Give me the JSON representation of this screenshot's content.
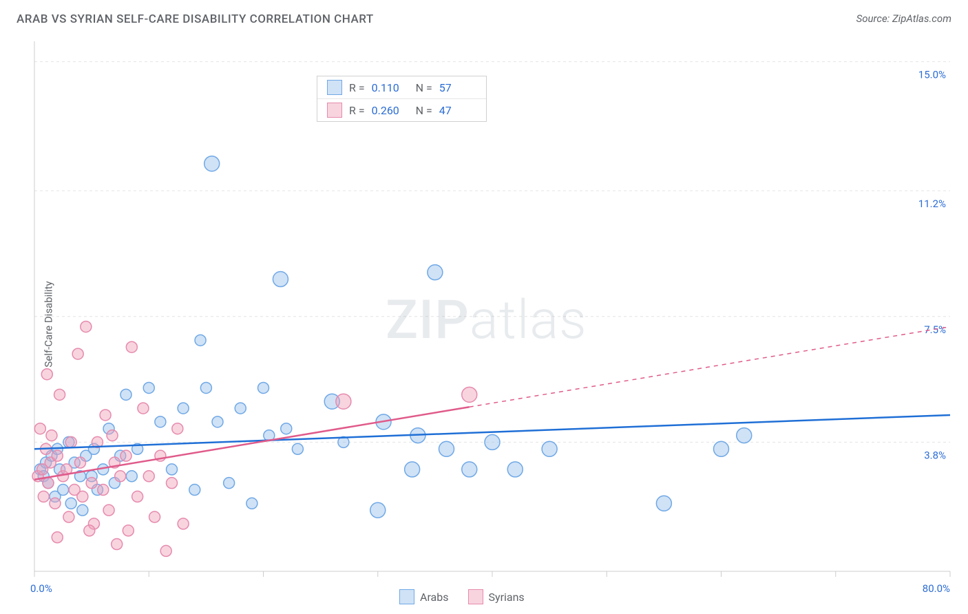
{
  "title": "ARAB VS SYRIAN SELF-CARE DISABILITY CORRELATION CHART",
  "source": "Source: ZipAtlas.com",
  "ylabel": "Self-Care Disability",
  "watermark": {
    "zip": "ZIP",
    "atlas": "atlas"
  },
  "chart": {
    "type": "scatter",
    "xlim": [
      0,
      80
    ],
    "ylim": [
      0,
      15.6
    ],
    "x_start_label": "0.0%",
    "x_end_label": "80.0%",
    "y_grid_values": [
      3.8,
      7.5,
      11.2,
      15.0
    ],
    "y_grid_labels": [
      "3.8%",
      "7.5%",
      "11.2%",
      "15.0%"
    ],
    "x_ticks": [
      0,
      10,
      20,
      30,
      40,
      50,
      60,
      70,
      80
    ],
    "grid_color": "#e4e4e4",
    "grid_dash": "4,4",
    "axis_color": "#cccccc",
    "background_color": "#ffffff",
    "text_color": "#5f6368",
    "link_color": "#2b6cd4",
    "marker_radius": 8,
    "marker_big_radius": 11,
    "marker_stroke_width": 1.5,
    "trend_width": 2.5,
    "series": [
      {
        "name": "Arabs",
        "fill": "rgba(150,190,235,0.45)",
        "stroke": "#6fa8e6",
        "trend_color": "#1f6fd6",
        "trend": {
          "x1": 0,
          "y1": 3.6,
          "x2": 80,
          "y2": 4.6,
          "solid_to_x": 80
        },
        "corr": {
          "R": "0.110",
          "N": "57"
        },
        "points": [
          {
            "x": 0.5,
            "y": 3.0
          },
          {
            "x": 0.8,
            "y": 2.8
          },
          {
            "x": 1.0,
            "y": 3.2
          },
          {
            "x": 1.2,
            "y": 2.6
          },
          {
            "x": 1.5,
            "y": 3.4
          },
          {
            "x": 1.8,
            "y": 2.2
          },
          {
            "x": 2.0,
            "y": 3.6
          },
          {
            "x": 2.2,
            "y": 3.0
          },
          {
            "x": 2.5,
            "y": 2.4
          },
          {
            "x": 3.0,
            "y": 3.8
          },
          {
            "x": 3.2,
            "y": 2.0
          },
          {
            "x": 3.5,
            "y": 3.2
          },
          {
            "x": 4.0,
            "y": 2.8
          },
          {
            "x": 4.2,
            "y": 1.8
          },
          {
            "x": 4.5,
            "y": 3.4
          },
          {
            "x": 5.0,
            "y": 2.8
          },
          {
            "x": 5.2,
            "y": 3.6
          },
          {
            "x": 5.5,
            "y": 2.4
          },
          {
            "x": 6.0,
            "y": 3.0
          },
          {
            "x": 6.5,
            "y": 4.2
          },
          {
            "x": 7.0,
            "y": 2.6
          },
          {
            "x": 7.5,
            "y": 3.4
          },
          {
            "x": 8.0,
            "y": 5.2
          },
          {
            "x": 8.5,
            "y": 2.8
          },
          {
            "x": 9.0,
            "y": 3.6
          },
          {
            "x": 10.0,
            "y": 5.4
          },
          {
            "x": 11.0,
            "y": 4.4
          },
          {
            "x": 12.0,
            "y": 3.0
          },
          {
            "x": 13.0,
            "y": 4.8
          },
          {
            "x": 14.0,
            "y": 2.4
          },
          {
            "x": 14.5,
            "y": 6.8
          },
          {
            "x": 15.0,
            "y": 5.4
          },
          {
            "x": 15.5,
            "y": 12.0,
            "big": true
          },
          {
            "x": 16.0,
            "y": 4.4
          },
          {
            "x": 17.0,
            "y": 2.6
          },
          {
            "x": 18.0,
            "y": 4.8
          },
          {
            "x": 19.0,
            "y": 2.0
          },
          {
            "x": 20.0,
            "y": 5.4
          },
          {
            "x": 20.5,
            "y": 4.0
          },
          {
            "x": 21.5,
            "y": 8.6,
            "big": true
          },
          {
            "x": 22.0,
            "y": 4.2
          },
          {
            "x": 23.0,
            "y": 3.6
          },
          {
            "x": 26.0,
            "y": 5.0,
            "big": true
          },
          {
            "x": 27.0,
            "y": 3.8
          },
          {
            "x": 30.0,
            "y": 1.8,
            "big": true
          },
          {
            "x": 30.5,
            "y": 4.4,
            "big": true
          },
          {
            "x": 33.0,
            "y": 3.0,
            "big": true
          },
          {
            "x": 33.5,
            "y": 4.0,
            "big": true
          },
          {
            "x": 36.0,
            "y": 3.6,
            "big": true
          },
          {
            "x": 38.0,
            "y": 3.0,
            "big": true
          },
          {
            "x": 40.0,
            "y": 3.8,
            "big": true
          },
          {
            "x": 42.0,
            "y": 3.0,
            "big": true
          },
          {
            "x": 45.0,
            "y": 3.6,
            "big": true
          },
          {
            "x": 55.0,
            "y": 2.0,
            "big": true
          },
          {
            "x": 60.0,
            "y": 3.6,
            "big": true
          },
          {
            "x": 62.0,
            "y": 4.0,
            "big": true
          },
          {
            "x": 35.0,
            "y": 8.8,
            "big": true
          }
        ]
      },
      {
        "name": "Syrians",
        "fill": "rgba(240,160,185,0.45)",
        "stroke": "#e68aad",
        "trend_color": "#e05a8a",
        "trend": {
          "x1": 0,
          "y1": 2.7,
          "x2": 80,
          "y2": 7.2,
          "solid_to_x": 38
        },
        "corr": {
          "R": "0.260",
          "N": "47"
        },
        "points": [
          {
            "x": 0.3,
            "y": 2.8
          },
          {
            "x": 0.5,
            "y": 4.2
          },
          {
            "x": 0.7,
            "y": 3.0
          },
          {
            "x": 0.8,
            "y": 2.2
          },
          {
            "x": 1.0,
            "y": 3.6
          },
          {
            "x": 1.1,
            "y": 5.8
          },
          {
            "x": 1.2,
            "y": 2.6
          },
          {
            "x": 1.4,
            "y": 3.2
          },
          {
            "x": 1.5,
            "y": 4.0
          },
          {
            "x": 1.8,
            "y": 2.0
          },
          {
            "x": 2.0,
            "y": 3.4
          },
          {
            "x": 2.2,
            "y": 5.2
          },
          {
            "x": 2.5,
            "y": 2.8
          },
          {
            "x": 2.8,
            "y": 3.0
          },
          {
            "x": 3.0,
            "y": 1.6
          },
          {
            "x": 3.2,
            "y": 3.8
          },
          {
            "x": 3.5,
            "y": 2.4
          },
          {
            "x": 3.8,
            "y": 6.4
          },
          {
            "x": 4.0,
            "y": 3.2
          },
          {
            "x": 4.2,
            "y": 2.2
          },
          {
            "x": 4.5,
            "y": 7.2
          },
          {
            "x": 5.0,
            "y": 2.6
          },
          {
            "x": 5.2,
            "y": 1.4
          },
          {
            "x": 5.5,
            "y": 3.8
          },
          {
            "x": 6.0,
            "y": 2.4
          },
          {
            "x": 6.2,
            "y": 4.6
          },
          {
            "x": 6.5,
            "y": 1.8
          },
          {
            "x": 7.0,
            "y": 3.2
          },
          {
            "x": 7.2,
            "y": 0.8
          },
          {
            "x": 7.5,
            "y": 2.8
          },
          {
            "x": 8.0,
            "y": 3.4
          },
          {
            "x": 8.2,
            "y": 1.2
          },
          {
            "x": 8.5,
            "y": 6.6
          },
          {
            "x": 9.0,
            "y": 2.2
          },
          {
            "x": 9.5,
            "y": 4.8
          },
          {
            "x": 10.0,
            "y": 2.8
          },
          {
            "x": 10.5,
            "y": 1.6
          },
          {
            "x": 11.0,
            "y": 3.4
          },
          {
            "x": 11.5,
            "y": 0.6
          },
          {
            "x": 12.0,
            "y": 2.6
          },
          {
            "x": 12.5,
            "y": 4.2
          },
          {
            "x": 13.0,
            "y": 1.4
          },
          {
            "x": 27.0,
            "y": 5.0,
            "big": true
          },
          {
            "x": 38.0,
            "y": 5.2,
            "big": true
          },
          {
            "x": 2.0,
            "y": 1.0
          },
          {
            "x": 4.8,
            "y": 1.2
          },
          {
            "x": 6.8,
            "y": 4.0
          }
        ]
      }
    ]
  }
}
